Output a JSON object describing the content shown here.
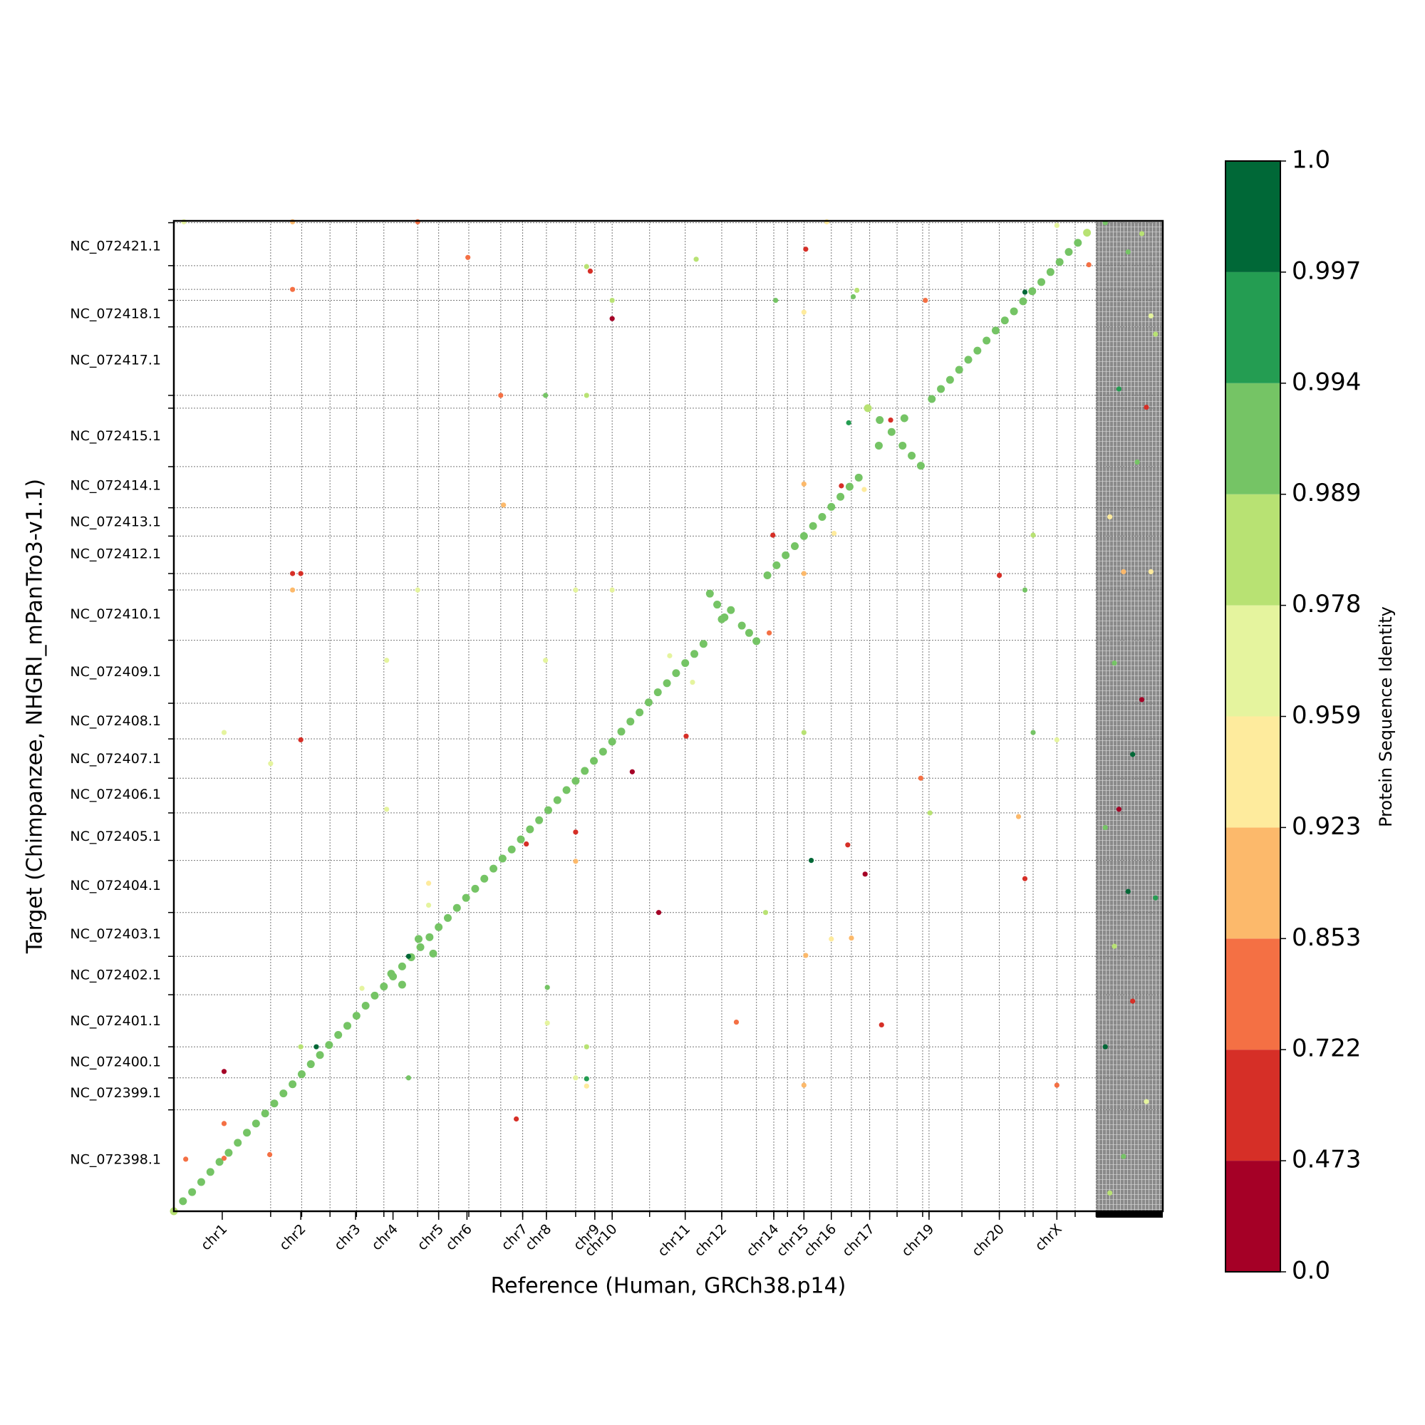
{
  "chart_data": {
    "type": "scatter",
    "x_label": "Reference (Human, GRCh38.p14)",
    "y_label": "Target (Chimpanzee, NHGRI_mPanTro3-v1.1)",
    "xlim": [
      0,
      1083
    ],
    "ylim": [
      0,
      1084
    ],
    "grid": true,
    "xticks": [
      {
        "value": 53,
        "label": "chr1"
      },
      {
        "value": 139,
        "label": "chr2"
      },
      {
        "value": 199,
        "label": "chr3"
      },
      {
        "value": 240,
        "label": "chr4"
      },
      {
        "value": 290,
        "label": "chr5"
      },
      {
        "value": 321,
        "label": "chr6"
      },
      {
        "value": 382,
        "label": "chr7"
      },
      {
        "value": 408,
        "label": "chr8"
      },
      {
        "value": 461,
        "label": "chr9"
      },
      {
        "value": 480,
        "label": "chr10"
      },
      {
        "value": 560,
        "label": "chr11"
      },
      {
        "value": 600,
        "label": "chr12"
      },
      {
        "value": 657,
        "label": "chr14"
      },
      {
        "value": 690,
        "label": "chr15"
      },
      {
        "value": 720,
        "label": "chr16"
      },
      {
        "value": 762,
        "label": "chr17"
      },
      {
        "value": 827,
        "label": "chr19"
      },
      {
        "value": 904,
        "label": "chr20"
      },
      {
        "value": 967,
        "label": "chrX"
      }
    ],
    "yticks": [
      {
        "value": 1056,
        "label": "NC_072421.1"
      },
      {
        "value": 982,
        "label": "NC_072418.1"
      },
      {
        "value": 931,
        "label": "NC_072417.1"
      },
      {
        "value": 848,
        "label": "NC_072415.1"
      },
      {
        "value": 794,
        "label": "NC_072414.1"
      },
      {
        "value": 754,
        "label": "NC_072413.1"
      },
      {
        "value": 719,
        "label": "NC_072412.1"
      },
      {
        "value": 653,
        "label": "NC_072410.1"
      },
      {
        "value": 590,
        "label": "NC_072409.1"
      },
      {
        "value": 536,
        "label": "NC_072408.1"
      },
      {
        "value": 495,
        "label": "NC_072407.1"
      },
      {
        "value": 456,
        "label": "NC_072406.1"
      },
      {
        "value": 410,
        "label": "NC_072405.1"
      },
      {
        "value": 356,
        "label": "NC_072404.1"
      },
      {
        "value": 303,
        "label": "NC_072403.1"
      },
      {
        "value": 258,
        "label": "NC_072402.1"
      },
      {
        "value": 208,
        "label": "NC_072401.1"
      },
      {
        "value": 163,
        "label": "NC_072400.1"
      },
      {
        "value": 129,
        "label": "NC_072399.1"
      },
      {
        "value": 56,
        "label": "NC_072398.1"
      }
    ],
    "xgrid": [
      106,
      140,
      171,
      200,
      230,
      267,
      290,
      323,
      358,
      382,
      408,
      440,
      461,
      480,
      521,
      560,
      600,
      638,
      657,
      672,
      690,
      720,
      742,
      762,
      792,
      820,
      827,
      863,
      904,
      932,
      941,
      967,
      987,
      1010
    ],
    "ygrid": [
      1082,
      1035,
      1009,
      997,
      968,
      893,
      879,
      815,
      770,
      739,
      698,
      680,
      625,
      556,
      517,
      474,
      436,
      384,
      327,
      279,
      237,
      180,
      146,
      111
    ],
    "series": [
      {
        "x": [
          0,
          10,
          20,
          30,
          40,
          50,
          60,
          70,
          80,
          90,
          100,
          110,
          120,
          130,
          140,
          150,
          160,
          170,
          180,
          190,
          200,
          210,
          220,
          230,
          240,
          250,
          260,
          270,
          280,
          290,
          300,
          310,
          320,
          330,
          340,
          350,
          360,
          370,
          380,
          390,
          400,
          410,
          420,
          430,
          440,
          450,
          460,
          470,
          480,
          490,
          500,
          510,
          520,
          530,
          540,
          550,
          560,
          570,
          580,
          650,
          660,
          670,
          680,
          690,
          700,
          710,
          720,
          730,
          740,
          750,
          830,
          840,
          850,
          860,
          870,
          880,
          890,
          900,
          910,
          920,
          930,
          940,
          950,
          960,
          970,
          980,
          990,
          1000
        ],
        "values": [
          0,
          11,
          21,
          32,
          43,
          54,
          64,
          75,
          86,
          96,
          107,
          118,
          129,
          139,
          150,
          161,
          171,
          182,
          193,
          203,
          214,
          225,
          236,
          246,
          257,
          268,
          278,
          289,
          300,
          311,
          321,
          332,
          343,
          353,
          364,
          375,
          386,
          396,
          407,
          418,
          428,
          439,
          450,
          461,
          471,
          482,
          493,
          503,
          514,
          525,
          536,
          546,
          557,
          568,
          578,
          589,
          600,
          610,
          621,
          696,
          707,
          718,
          728,
          739,
          750,
          760,
          771,
          782,
          793,
          803,
          889,
          900,
          910,
          921,
          932,
          942,
          953,
          964,
          975,
          985,
          996,
          1007,
          1017,
          1028,
          1039,
          1050,
          1060,
          1071
        ],
        "identity": [
          0.985,
          0.99,
          0.99,
          0.99,
          0.99,
          0.99,
          0.99,
          0.99,
          0.99,
          0.99,
          0.99,
          0.99,
          0.99,
          0.99,
          0.99,
          0.99,
          0.99,
          0.99,
          0.99,
          0.99,
          0.99,
          0.99,
          0.99,
          0.99,
          0.99,
          0.99,
          0.99,
          0.99,
          0.99,
          0.99,
          0.99,
          0.99,
          0.99,
          0.99,
          0.99,
          0.99,
          0.99,
          0.99,
          0.99,
          0.99,
          0.99,
          0.99,
          0.99,
          0.99,
          0.99,
          0.99,
          0.99,
          0.99,
          0.99,
          0.99,
          0.99,
          0.99,
          0.99,
          0.99,
          0.99,
          0.99,
          0.99,
          0.99,
          0.99,
          0.99,
          0.99,
          0.99,
          0.99,
          0.99,
          0.99,
          0.99,
          0.99,
          0.99,
          0.99,
          0.99,
          0.99,
          0.99,
          0.99,
          0.99,
          0.99,
          0.99,
          0.99,
          0.99,
          0.99,
          0.99,
          0.99,
          0.99,
          0.99,
          0.99,
          0.99,
          0.99,
          0.99,
          0.985
        ]
      },
      {
        "x": [
          587,
          595,
          603,
          600,
          610,
          622,
          630,
          638,
          760,
          773,
          772,
          786,
          800,
          798,
          808,
          818,
          238,
          250,
          268,
          284
        ],
        "values": [
          676,
          664,
          650,
          648,
          658,
          641,
          633,
          624,
          879,
          866,
          838,
          853,
          868,
          838,
          827,
          816,
          260,
          248,
          298,
          282
        ],
        "identity": [
          0.99,
          0.99,
          0.99,
          0.99,
          0.99,
          0.99,
          0.99,
          0.99,
          0.985,
          0.99,
          0.99,
          0.99,
          0.99,
          0.99,
          0.99,
          0.99,
          0.99,
          0.99,
          0.99,
          0.99
        ]
      },
      {
        "x": [
          11,
          130,
          267,
          715,
          967,
          322,
          452,
          456,
          572,
          692,
          130,
          480,
          480,
          659,
          744,
          748,
          823,
          690,
          932,
          1002,
          358,
          407,
          452,
          739,
          785,
          361,
          690,
          731,
          756,
          656,
          723,
          941,
          130,
          139,
          130,
          267,
          440,
          480,
          690,
          904,
          932,
          652,
          543,
          568,
          233,
          407,
          55,
          139,
          690,
          941,
          967,
          561,
          502,
          106,
          818,
          828,
          233,
          925,
          440,
          440,
          386,
          698,
          738,
          757,
          932,
          279,
          279,
          531,
          648,
          720,
          742,
          692,
          257,
          206,
          409,
          409,
          616,
          775,
          139,
          156,
          452,
          55,
          257,
          440,
          452,
          452,
          690,
          967,
          375,
          55,
          105,
          13,
          55
        ],
        "values": [
          1083,
          1083,
          1083,
          1083,
          1079,
          1044,
          1034,
          1029,
          1042,
          1053,
          1009,
          997,
          977,
          997,
          1001,
          1008,
          997,
          984,
          1006,
          1036,
          893,
          893,
          893,
          863,
          866,
          773,
          796,
          794,
          790,
          740,
          742,
          740,
          698,
          698,
          680,
          680,
          680,
          680,
          698,
          696,
          680,
          633,
          608,
          579,
          603,
          603,
          524,
          516,
          524,
          524,
          516,
          520,
          481,
          490,
          474,
          436,
          440,
          432,
          415,
          383,
          402,
          384,
          401,
          369,
          364,
          359,
          335,
          327,
          327,
          298,
          299,
          280,
          279,
          244,
          245,
          206,
          207,
          204,
          180,
          180,
          180,
          153,
          146,
          146,
          145,
          137,
          138,
          138,
          101,
          96,
          62,
          57,
          58
        ],
        "identity": [
          0.96,
          0.9,
          0.8,
          0.93,
          0.97,
          0.8,
          0.98,
          0.6,
          0.985,
          0.6,
          0.8,
          0.98,
          0.3,
          0.99,
          0.992,
          0.98,
          0.8,
          0.93,
          0.998,
          0.8,
          0.8,
          0.992,
          0.985,
          0.996,
          0.6,
          0.9,
          0.9,
          0.7,
          0.95,
          0.5,
          0.95,
          0.985,
          0.6,
          0.6,
          0.9,
          0.97,
          0.97,
          0.97,
          0.9,
          0.5,
          0.99,
          0.8,
          0.97,
          0.97,
          0.97,
          0.97,
          0.97,
          0.5,
          0.985,
          0.99,
          0.96,
          0.6,
          0.3,
          0.96,
          0.8,
          0.985,
          0.96,
          0.9,
          0.6,
          0.9,
          0.5,
          0.997,
          0.6,
          0.4,
          0.5,
          0.95,
          0.96,
          0.4,
          0.985,
          0.95,
          0.9,
          0.9,
          0.997,
          0.96,
          0.992,
          0.96,
          0.8,
          0.6,
          0.985,
          0.997,
          0.985,
          0.4,
          0.992,
          0.96,
          0.995,
          0.95,
          0.9,
          0.8,
          0.6,
          0.8,
          0.8,
          0.8,
          0.8
        ]
      },
      {
        "x": [
          1020,
          1035,
          1045,
          1060,
          1070,
          1025,
          1040,
          1055,
          1065,
          1075,
          1030,
          1050,
          1020,
          1060,
          1045,
          1075,
          1030,
          1050,
          1020,
          1065,
          1040,
          1025,
          1070,
          1035
        ],
        "values": [
          1082,
          900,
          1050,
          1070,
          980,
          760,
          700,
          820,
          880,
          960,
          600,
          500,
          420,
          560,
          350,
          343,
          290,
          230,
          180,
          120,
          60,
          20,
          700,
          440
        ],
        "identity": [
          0.99,
          0.996,
          0.992,
          0.98,
          0.97,
          0.95,
          0.9,
          0.99,
          0.6,
          0.985,
          0.992,
          0.998,
          0.99,
          0.4,
          0.997,
          0.995,
          0.98,
          0.7,
          0.997,
          0.96,
          0.99,
          0.985,
          0.93,
          0.3
        ]
      }
    ],
    "colorbar": {
      "label": "Protein Sequence Identity",
      "boundaries": [
        {
          "value": 0,
          "label": "0.0"
        },
        0.473,
        0.722,
        0.853,
        0.923,
        0.959,
        0.978,
        0.989,
        0.994,
        0.997,
        {
          "value": 1,
          "label": "1.0"
        }
      ],
      "colors": [
        "#a50026",
        "#d62f27",
        "#f47044",
        "#fcb96b",
        "#feeb9d",
        "#e5f49e",
        "#b8e273",
        "#75c465",
        "#249d52",
        "#006837"
      ]
    }
  }
}
